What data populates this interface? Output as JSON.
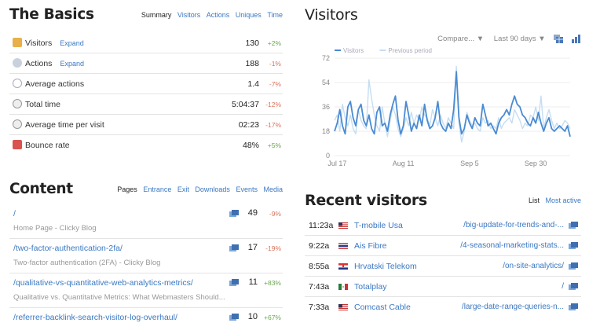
{
  "basics": {
    "title": "The Basics",
    "tabs": [
      "Summary",
      "Visitors",
      "Actions",
      "Uniques",
      "Time"
    ],
    "expand_label": "Expand",
    "rows": [
      {
        "label": "Visitors",
        "value": "130",
        "change": "+2%",
        "trend": "up",
        "expand": true
      },
      {
        "label": "Actions",
        "value": "188",
        "change": "-1%",
        "trend": "down",
        "expand": true
      },
      {
        "label": "Average actions",
        "value": "1.4",
        "change": "-7%",
        "trend": "down",
        "expand": false
      },
      {
        "label": "Total time",
        "value": "5:04:37",
        "change": "-12%",
        "trend": "down",
        "expand": false
      },
      {
        "label": "Average time per visit",
        "value": "02:23",
        "change": "-17%",
        "trend": "down",
        "expand": false
      },
      {
        "label": "Bounce rate",
        "value": "48%",
        "change": "+5%",
        "trend": "up",
        "expand": false
      }
    ]
  },
  "content": {
    "title": "Content",
    "tabs": [
      "Pages",
      "Entrance",
      "Exit",
      "Downloads",
      "Events",
      "Media"
    ],
    "rows": [
      {
        "path": "/",
        "subtitle": "Home Page - Clicky Blog",
        "value": "49",
        "change": "-9%",
        "trend": "down"
      },
      {
        "path": "/two-factor-authentication-2fa/",
        "subtitle": "Two-factor authentication (2FA) - Clicky Blog",
        "value": "17",
        "change": "-19%",
        "trend": "down"
      },
      {
        "path": "/qualitative-vs-quantitative-web-analytics-metrics/",
        "subtitle": "Qualitative vs. Quantitative Metrics: What Webmasters Should...",
        "value": "11",
        "change": "+83%",
        "trend": "up"
      },
      {
        "path": "/referrer-backlink-search-visitor-log-overhaul/",
        "subtitle": "",
        "value": "10",
        "change": "+67%",
        "trend": "up"
      }
    ]
  },
  "visitors": {
    "title": "Visitors",
    "compare_label": "Compare... ▼",
    "range_label": "Last 90 days ▼"
  },
  "chart_data": {
    "type": "line",
    "title": "",
    "series_colors": {
      "current": "#4a8bd2",
      "previous": "#c5ddf2"
    },
    "legend": [
      "Visitors",
      "Previous period"
    ],
    "legend_position": "top-left",
    "xticks": [
      "Jul 17",
      "Aug 11",
      "Sep 5",
      "Sep 30"
    ],
    "ylim": [
      0,
      72
    ],
    "yticks": [
      0,
      18,
      36,
      54,
      72
    ],
    "grid": true,
    "series": [
      {
        "name": "Visitors",
        "values": [
          18,
          24,
          34,
          22,
          16,
          36,
          40,
          28,
          22,
          34,
          38,
          26,
          22,
          30,
          20,
          16,
          32,
          36,
          22,
          24,
          18,
          30,
          38,
          44,
          26,
          16,
          22,
          40,
          30,
          18,
          24,
          20,
          30,
          22,
          38,
          26,
          20,
          22,
          28,
          40,
          24,
          20,
          18,
          24,
          20,
          34,
          62,
          28,
          16,
          20,
          30,
          24,
          20,
          28,
          24,
          22,
          38,
          30,
          22,
          24,
          20,
          16,
          24,
          28,
          30,
          34,
          30,
          38,
          44,
          38,
          36,
          30,
          28,
          24,
          22,
          28,
          24,
          32,
          24,
          18,
          24,
          28,
          20,
          18,
          20,
          22,
          20,
          18,
          22,
          14
        ]
      },
      {
        "name": "Previous period",
        "values": [
          26,
          30,
          18,
          38,
          28,
          22,
          30,
          20,
          16,
          34,
          26,
          22,
          20,
          56,
          42,
          30,
          22,
          18,
          36,
          24,
          14,
          26,
          36,
          30,
          20,
          14,
          20,
          28,
          22,
          32,
          24,
          30,
          26,
          36,
          30,
          28,
          22,
          34,
          28,
          22,
          30,
          24,
          20,
          28,
          24,
          20,
          66,
          24,
          10,
          18,
          32,
          26,
          22,
          24,
          20,
          18,
          28,
          24,
          26,
          20,
          22,
          20,
          28,
          20,
          24,
          26,
          28,
          24,
          34,
          30,
          26,
          20,
          24,
          22,
          30,
          28,
          36,
          26,
          44,
          20,
          28,
          34,
          26,
          20,
          24,
          20,
          22,
          26,
          24,
          20
        ]
      }
    ]
  },
  "recent": {
    "title": "Recent visitors",
    "tabs": [
      "List",
      "Most active"
    ],
    "rows": [
      {
        "time": "11:23a",
        "flag": "us",
        "isp": "T-mobile Usa",
        "path": "/big-update-for-trends-and-..."
      },
      {
        "time": "9:22a",
        "flag": "th",
        "isp": "Ais Fibre",
        "path": "/4-seasonal-marketing-stats..."
      },
      {
        "time": "8:55a",
        "flag": "hr",
        "isp": "Hrvatski Telekom",
        "path": "/on-site-analytics/"
      },
      {
        "time": "7:43a",
        "flag": "mx",
        "isp": "Totalplay",
        "path": "/"
      },
      {
        "time": "7:33a",
        "flag": "us",
        "isp": "Comcast Cable",
        "path": "/large-date-range-queries-n..."
      }
    ]
  }
}
